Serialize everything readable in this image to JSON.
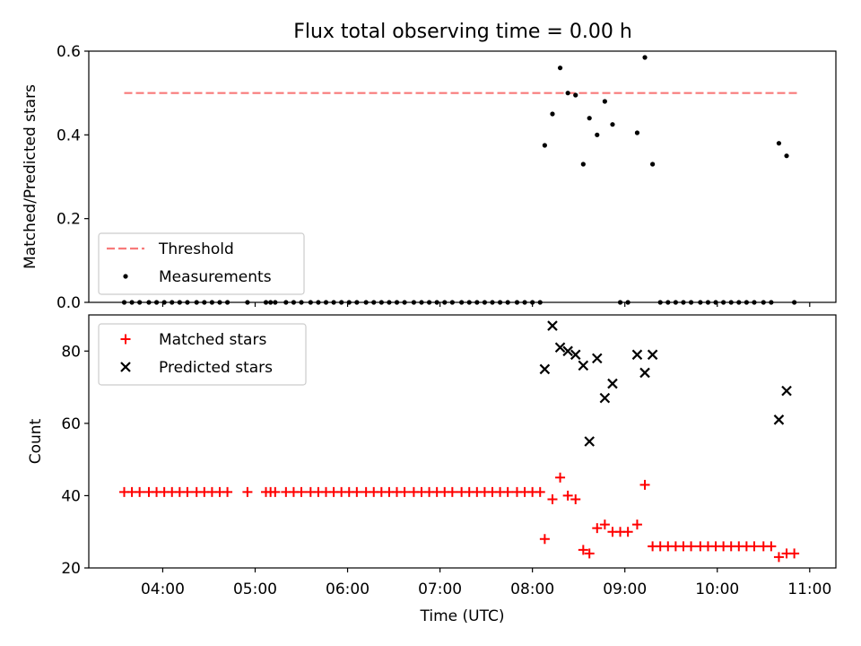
{
  "title": "Flux total observing time = 0.00 h",
  "colors": {
    "threshold": "#f87a7a",
    "measurements": "#000000",
    "matched": "#ff0000",
    "predicted": "#000000"
  },
  "chart_data": [
    {
      "type": "scatter",
      "ylabel": "Matched/Predicted stars",
      "ylim": [
        0,
        0.6
      ],
      "yticks": [
        0.0,
        0.2,
        0.4,
        0.6
      ],
      "ytick_labels": [
        "0.0",
        "0.2",
        "0.4",
        "0.6"
      ],
      "xlim": [
        "03:12",
        "11:17"
      ],
      "grid": false,
      "legend": {
        "placement": "lower-left",
        "entries": [
          "Threshold",
          "Measurements"
        ]
      },
      "series": [
        {
          "name": "Threshold",
          "kind": "dashed-line",
          "x": [
            "03:35",
            "10:52"
          ],
          "y": [
            0.5,
            0.5
          ]
        },
        {
          "name": "Measurements",
          "kind": "dot",
          "x": [
            "03:35",
            "03:40",
            "03:45",
            "03:51",
            "03:56",
            "04:01",
            "04:06",
            "04:11",
            "04:16",
            "04:22",
            "04:27",
            "04:32",
            "04:37",
            "04:42",
            "04:55",
            "05:07",
            "05:10",
            "05:13",
            "05:20",
            "05:25",
            "05:30",
            "05:36",
            "05:41",
            "05:46",
            "05:51",
            "05:56",
            "06:01",
            "06:06",
            "06:12",
            "06:17",
            "06:22",
            "06:27",
            "06:32",
            "06:37",
            "06:43",
            "06:48",
            "06:53",
            "06:58",
            "07:03",
            "07:08",
            "07:14",
            "07:19",
            "07:24",
            "07:29",
            "07:34",
            "07:39",
            "07:44",
            "07:50",
            "07:55",
            "08:00",
            "08:05",
            "08:08",
            "08:13",
            "08:18",
            "08:23",
            "08:28",
            "08:33",
            "08:37",
            "08:42",
            "08:47",
            "08:52",
            "08:57",
            "09:02",
            "09:08",
            "09:13",
            "09:18",
            "09:23",
            "09:28",
            "09:33",
            "09:38",
            "09:43",
            "09:49",
            "09:54",
            "09:59",
            "10:04",
            "10:09",
            "10:14",
            "10:19",
            "10:24",
            "10:30",
            "10:35",
            "10:40",
            "10:45",
            "10:50"
          ],
          "y": [
            0,
            0,
            0,
            0,
            0,
            0,
            0,
            0,
            0,
            0,
            0,
            0,
            0,
            0,
            0,
            0,
            0,
            0,
            0,
            0,
            0,
            0,
            0,
            0,
            0,
            0,
            0,
            0,
            0,
            0,
            0,
            0,
            0,
            0,
            0,
            0,
            0,
            0,
            0,
            0,
            0,
            0,
            0,
            0,
            0,
            0,
            0,
            0,
            0,
            0,
            0,
            0.375,
            0.45,
            0.56,
            0.5,
            0.495,
            0.33,
            0.44,
            0.4,
            0.48,
            0.425,
            0,
            0,
            0.405,
            0.585,
            0.33,
            0,
            0,
            0,
            0,
            0,
            0,
            0,
            0,
            0,
            0,
            0,
            0,
            0,
            0,
            0,
            0.38,
            0.35,
            0
          ]
        }
      ]
    },
    {
      "type": "scatter",
      "xlabel": "Time (UTC)",
      "ylabel": "Count",
      "ylim": [
        20,
        90
      ],
      "yticks": [
        20,
        40,
        60,
        80
      ],
      "ytick_labels": [
        "20",
        "40",
        "60",
        "80"
      ],
      "xlim": [
        "03:12",
        "11:17"
      ],
      "xticks": [
        "04:00",
        "05:00",
        "06:00",
        "07:00",
        "08:00",
        "09:00",
        "10:00",
        "11:00"
      ],
      "grid": false,
      "legend": {
        "placement": "top-left",
        "entries": [
          "Matched stars",
          "Predicted stars"
        ]
      },
      "series": [
        {
          "name": "Matched stars",
          "marker": "+",
          "x": [
            "03:35",
            "03:40",
            "03:45",
            "03:51",
            "03:56",
            "04:01",
            "04:06",
            "04:11",
            "04:16",
            "04:22",
            "04:27",
            "04:32",
            "04:37",
            "04:42",
            "04:55",
            "05:07",
            "05:10",
            "05:13",
            "05:20",
            "05:25",
            "05:30",
            "05:36",
            "05:41",
            "05:46",
            "05:51",
            "05:56",
            "06:01",
            "06:06",
            "06:12",
            "06:17",
            "06:22",
            "06:27",
            "06:32",
            "06:37",
            "06:43",
            "06:48",
            "06:53",
            "06:58",
            "07:03",
            "07:08",
            "07:14",
            "07:19",
            "07:24",
            "07:29",
            "07:34",
            "07:39",
            "07:44",
            "07:50",
            "07:55",
            "08:00",
            "08:05",
            "08:08",
            "08:13",
            "08:18",
            "08:23",
            "08:28",
            "08:33",
            "08:37",
            "08:42",
            "08:47",
            "08:52",
            "08:57",
            "09:02",
            "09:08",
            "09:13",
            "09:18",
            "09:23",
            "09:28",
            "09:33",
            "09:38",
            "09:43",
            "09:49",
            "09:54",
            "09:59",
            "10:04",
            "10:09",
            "10:14",
            "10:19",
            "10:24",
            "10:30",
            "10:35",
            "10:40",
            "10:45",
            "10:50"
          ],
          "y": [
            41,
            41,
            41,
            41,
            41,
            41,
            41,
            41,
            41,
            41,
            41,
            41,
            41,
            41,
            41,
            41,
            41,
            41,
            41,
            41,
            41,
            41,
            41,
            41,
            41,
            41,
            41,
            41,
            41,
            41,
            41,
            41,
            41,
            41,
            41,
            41,
            41,
            41,
            41,
            41,
            41,
            41,
            41,
            41,
            41,
            41,
            41,
            41,
            41,
            41,
            41,
            28,
            39,
            45,
            40,
            39,
            25,
            24,
            31,
            32,
            30,
            30,
            30,
            32,
            43,
            26,
            26,
            26,
            26,
            26,
            26,
            26,
            26,
            26,
            26,
            26,
            26,
            26,
            26,
            26,
            26,
            23,
            24,
            24
          ]
        },
        {
          "name": "Predicted stars",
          "marker": "x",
          "x": [
            "08:08",
            "08:13",
            "08:18",
            "08:23",
            "08:28",
            "08:33",
            "08:37",
            "08:42",
            "08:47",
            "08:52",
            "09:08",
            "09:13",
            "09:18",
            "10:40",
            "10:45"
          ],
          "y": [
            75,
            87,
            81,
            80,
            79,
            76,
            55,
            78,
            67,
            71,
            79,
            74,
            79,
            61,
            69
          ]
        }
      ]
    }
  ]
}
